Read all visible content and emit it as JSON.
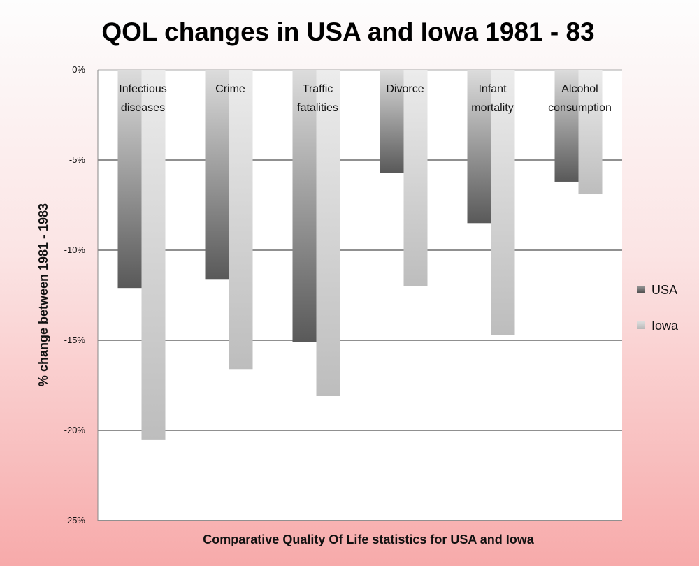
{
  "chart_data": {
    "type": "bar",
    "title": "QOL changes in USA and Iowa 1981 - 83",
    "xlabel": "Comparative Quality Of Life statistics for USA and Iowa",
    "ylabel": "% change between 1981 - 1983",
    "ylim": [
      -25,
      0
    ],
    "yticks": [
      0,
      -5,
      -10,
      -15,
      -20,
      -25
    ],
    "ytick_labels": [
      "0%",
      "-5%",
      "-10%",
      "-15%",
      "-20%",
      "-25%"
    ],
    "grid": true,
    "legend_position": "right",
    "categories": [
      [
        "Infectious",
        "diseases"
      ],
      [
        "Crime"
      ],
      [
        "Traffic",
        "fatalities"
      ],
      [
        "Divorce"
      ],
      [
        "Infant",
        "mortality"
      ],
      [
        "Alcohol",
        "consumption"
      ]
    ],
    "series": [
      {
        "name": "USA",
        "values": [
          -12.1,
          -11.6,
          -15.1,
          -5.7,
          -8.5,
          -6.2
        ],
        "color": "#5a5a5a"
      },
      {
        "name": "Iowa",
        "values": [
          -20.5,
          -16.6,
          -18.1,
          -12.0,
          -14.7,
          -6.9
        ],
        "color": "#c4c4c4"
      }
    ]
  }
}
